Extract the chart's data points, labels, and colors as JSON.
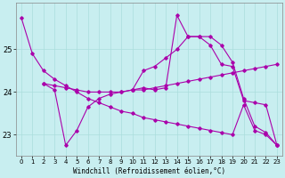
{
  "xlabel": "Windchill (Refroidissement éolien,°C)",
  "bg_color": "#c8eef0",
  "line_color": "#aa00aa",
  "grid_color": "#aadddd",
  "xlim": [
    -0.5,
    23.5
  ],
  "ylim": [
    22.5,
    26.1
  ],
  "yticks": [
    23,
    24,
    25
  ],
  "xticks": [
    0,
    1,
    2,
    3,
    4,
    5,
    6,
    7,
    8,
    9,
    10,
    11,
    12,
    13,
    14,
    15,
    16,
    17,
    18,
    19,
    20,
    21,
    22,
    23
  ],
  "line1_x": [
    0,
    1,
    2,
    3,
    4,
    5,
    6,
    7,
    8,
    9,
    10,
    11,
    12,
    13,
    14,
    15,
    16,
    17,
    18,
    19,
    20,
    21,
    22,
    23
  ],
  "line1_y": [
    25.75,
    24.9,
    24.5,
    24.3,
    24.15,
    24.0,
    23.85,
    23.75,
    23.65,
    23.55,
    23.5,
    23.4,
    23.35,
    23.3,
    23.25,
    23.2,
    23.15,
    23.1,
    23.05,
    23.0,
    23.7,
    23.1,
    23.0,
    22.75
  ],
  "line2_x": [
    2,
    3,
    4,
    5,
    6,
    7,
    8,
    9,
    10,
    11,
    12,
    13,
    14,
    15,
    16,
    17,
    18,
    19,
    20,
    21,
    22,
    23
  ],
  "line2_y": [
    24.2,
    24.15,
    24.1,
    24.05,
    24.0,
    24.0,
    24.0,
    24.0,
    24.05,
    24.05,
    24.1,
    24.15,
    24.2,
    24.25,
    24.3,
    24.35,
    24.4,
    24.45,
    24.5,
    24.55,
    24.6,
    24.65
  ],
  "line3_x": [
    2,
    3,
    4,
    5,
    6,
    7,
    8,
    9,
    10,
    11,
    12,
    13,
    14,
    15,
    16,
    17,
    18,
    19,
    20,
    21,
    22,
    23
  ],
  "line3_y": [
    24.2,
    24.05,
    22.75,
    23.1,
    23.65,
    23.85,
    23.95,
    24.0,
    24.05,
    24.1,
    24.05,
    24.1,
    25.8,
    25.3,
    25.3,
    25.3,
    25.1,
    24.7,
    23.85,
    23.2,
    23.05,
    22.75
  ],
  "line4_x": [
    10,
    11,
    12,
    13,
    14,
    15,
    16,
    17,
    18,
    19,
    20,
    21,
    22,
    23
  ],
  "line4_y": [
    24.05,
    24.5,
    24.6,
    24.8,
    25.0,
    25.3,
    25.3,
    25.1,
    24.65,
    24.6,
    23.8,
    23.75,
    23.7,
    22.75
  ]
}
